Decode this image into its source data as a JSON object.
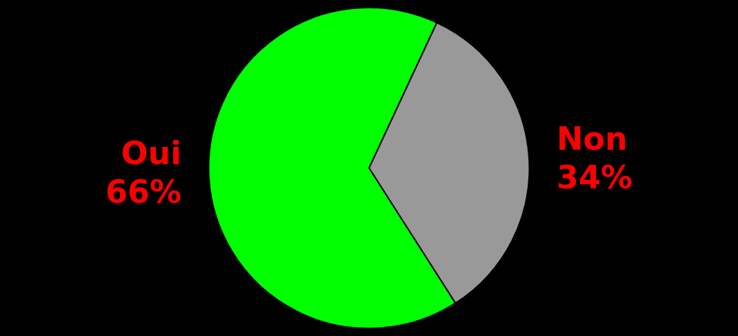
{
  "chart_data": {
    "type": "pie",
    "categories": [
      "Non",
      "Oui"
    ],
    "values": [
      34,
      66
    ],
    "colors": [
      "#999999",
      "#00ff00"
    ],
    "value_labels": [
      "34%",
      "66%"
    ],
    "legend": false
  }
}
